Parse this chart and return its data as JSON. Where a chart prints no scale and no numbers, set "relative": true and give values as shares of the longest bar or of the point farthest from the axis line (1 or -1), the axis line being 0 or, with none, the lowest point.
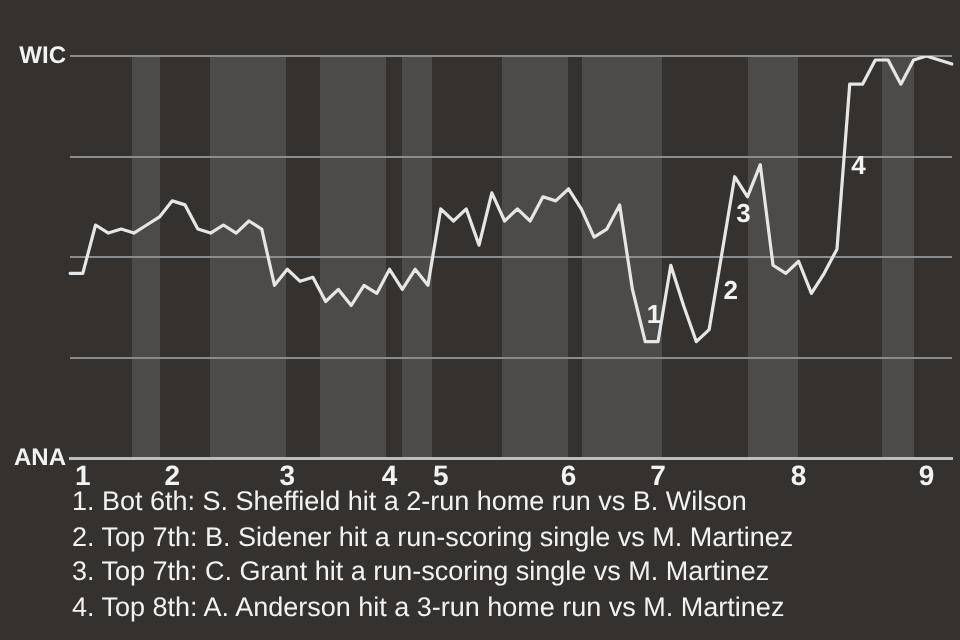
{
  "chart_data": {
    "type": "line",
    "relative": true,
    "categories": [
      null,
      "1",
      null,
      null,
      null,
      null,
      null,
      null,
      "2",
      null,
      null,
      null,
      null,
      null,
      null,
      null,
      null,
      "3",
      null,
      null,
      null,
      null,
      null,
      null,
      null,
      "4",
      null,
      null,
      null,
      "5",
      null,
      null,
      null,
      null,
      null,
      null,
      null,
      null,
      null,
      "6",
      null,
      null,
      null,
      null,
      null,
      null,
      "7",
      null,
      null,
      null,
      null,
      null,
      null,
      null,
      null,
      null,
      null,
      "8",
      null,
      null,
      null,
      null,
      null,
      null,
      null,
      null,
      null,
      "9",
      null,
      null
    ],
    "values": [
      0.46,
      0.46,
      0.58,
      0.56,
      0.57,
      0.56,
      0.58,
      0.6,
      0.64,
      0.63,
      0.57,
      0.56,
      0.58,
      0.56,
      0.59,
      0.57,
      0.43,
      0.47,
      0.44,
      0.45,
      0.39,
      0.42,
      0.38,
      0.43,
      0.41,
      0.47,
      0.42,
      0.47,
      0.43,
      0.62,
      0.59,
      0.62,
      0.53,
      0.66,
      0.59,
      0.62,
      0.59,
      0.65,
      0.64,
      0.67,
      0.62,
      0.55,
      0.57,
      0.63,
      0.42,
      0.29,
      0.29,
      0.48,
      0.38,
      0.29,
      0.32,
      0.51,
      0.7,
      0.65,
      0.73,
      0.48,
      0.46,
      0.49,
      0.41,
      0.46,
      0.52,
      0.93,
      0.93,
      0.99,
      0.99,
      0.93,
      0.99,
      1,
      0.99,
      0.98
    ],
    "color": "#e6e6e6",
    "marker": "none",
    "grid": "y",
    "annotations": [
      "WIC",
      "ANA",
      "1",
      "2",
      "3",
      "4",
      "1. Bot 6th: S. Sheffield hit a 2-run home run vs B. Wilson",
      "2. Top 7th: B. Sidener hit a run-scoring single vs M. Martinez",
      "3. Top 7th: C. Grant hit a run-scoring single vs M. Martinez",
      "4. Top 8th: A. Anderson hit a 3-run home run vs M. Martinez"
    ]
  }
}
